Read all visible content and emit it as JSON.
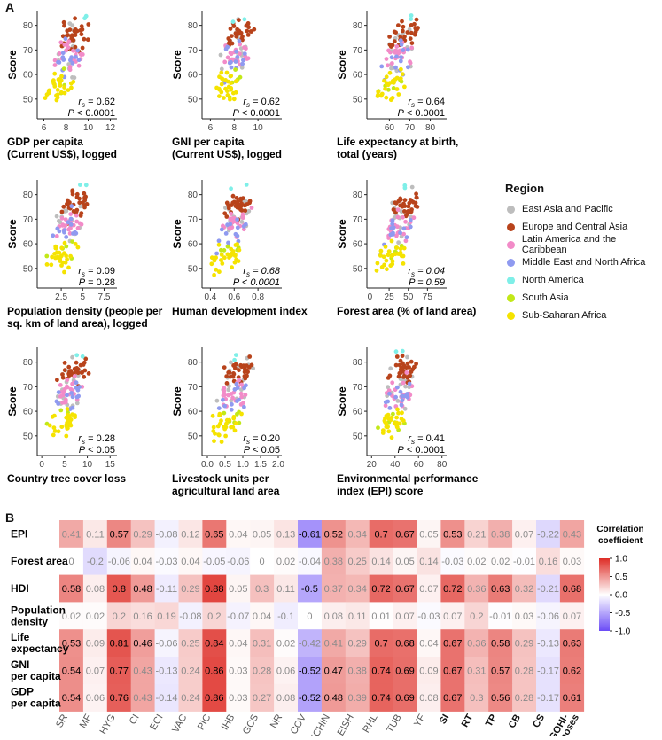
{
  "panel_labels": {
    "a": "A",
    "b": "B"
  },
  "legend": {
    "title": "Region",
    "items": [
      {
        "label": "East Asia and Pacific",
        "color": "#BDBDBD"
      },
      {
        "label": "Europe and Central Asia",
        "color": "#B8431B"
      },
      {
        "label": "Latin America and the Caribbean",
        "color": "#F28BC8"
      },
      {
        "label": "Middle East and North Africa",
        "color": "#8F9AF0"
      },
      {
        "label": "North America",
        "color": "#7FEFE8"
      },
      {
        "label": "South Asia",
        "color": "#C2E818"
      },
      {
        "label": "Sub-Saharan Africa",
        "color": "#F5E300"
      }
    ]
  },
  "chart_data": [
    {
      "type": "scatter",
      "xlabel": "GDP per capita\n(Current US$), logged",
      "ylabel": "Score",
      "xlim": [
        5.4,
        12.6
      ],
      "xticks": [
        6,
        8,
        10,
        12
      ],
      "ylim": [
        42,
        86
      ],
      "yticks": [
        50,
        60,
        70,
        80
      ],
      "rs_label": "rs = 0.62",
      "p_label": "P < 0.0001",
      "italic": false
    },
    {
      "type": "scatter",
      "xlabel": "GNI per capita\n(Current US$), logged",
      "ylabel": "Score",
      "xlim": [
        5.3,
        12.0
      ],
      "xticks": [
        6,
        8,
        10
      ],
      "ylim": [
        42,
        86
      ],
      "yticks": [
        50,
        60,
        70,
        80
      ],
      "rs_label": "rs = 0.62",
      "p_label": "P < 0.0001",
      "italic": false
    },
    {
      "type": "scatter",
      "xlabel": "Life expectancy at birth,\ntotal (years)",
      "ylabel": "Score",
      "xlim": [
        49,
        88
      ],
      "xticks": [
        60,
        70,
        80
      ],
      "ylim": [
        42,
        86
      ],
      "yticks": [
        50,
        60,
        70,
        80
      ],
      "rs_label": "rs = 0.64",
      "p_label": "P < 0.0001",
      "italic": false
    },
    {
      "type": "scatter",
      "xlabel": "Population density (people per\nsq. km of land area), logged",
      "ylabel": "Score",
      "xlim": [
        -0.3,
        9.0
      ],
      "xticks": [
        2.5,
        5.0,
        7.5
      ],
      "ylim": [
        42,
        86
      ],
      "yticks": [
        50,
        60,
        70,
        80
      ],
      "rs_label": "rs = 0.09",
      "p_label": "P = 0.28",
      "italic": false
    },
    {
      "type": "scatter",
      "xlabel": "Human development index",
      "ylabel": "Score",
      "xlim": [
        0.33,
        1.0
      ],
      "xticks": [
        0.4,
        0.6,
        0.8
      ],
      "ylim": [
        42,
        86
      ],
      "yticks": [
        50,
        60,
        70,
        80
      ],
      "rs_label": "rs = 0.68",
      "p_label": "P < 0.0001",
      "italic": true
    },
    {
      "type": "scatter",
      "xlabel": "Forest area (% of land area)",
      "ylabel": "Score",
      "xlim": [
        -4,
        100
      ],
      "xticks": [
        0,
        25,
        50,
        75
      ],
      "ylim": [
        42,
        86
      ],
      "yticks": [
        50,
        60,
        70,
        80
      ],
      "rs_label": "rs = 0.04",
      "p_label": "P = 0.59",
      "italic": true
    },
    {
      "type": "scatter",
      "xlabel": "Country tree cover loss",
      "ylabel": "Score",
      "xlim": [
        -1,
        16.5
      ],
      "xticks": [
        0,
        5,
        10,
        15
      ],
      "ylim": [
        42,
        86
      ],
      "yticks": [
        50,
        60,
        70,
        80
      ],
      "rs_label": "rs = 0.28",
      "p_label": "P < 0.05",
      "italic": false
    },
    {
      "type": "scatter",
      "xlabel": "Livestock units per\nagricultural land area",
      "ylabel": "Score",
      "xlim": [
        -0.15,
        2.1
      ],
      "xticks": [
        0.0,
        0.5,
        1.0,
        1.5,
        2.0
      ],
      "xtick_labels": [
        "0.0",
        "0.5",
        "1.0",
        "1.5",
        "2.0"
      ],
      "ylim": [
        42,
        86
      ],
      "yticks": [
        50,
        60,
        70,
        80
      ],
      "rs_label": "rs = 0.20",
      "p_label": "P < 0.05",
      "italic": false
    },
    {
      "type": "scatter",
      "xlabel": "Environmental performance\nindex (EPI) score",
      "ylabel": "Score",
      "xlim": [
        16,
        84
      ],
      "xticks": [
        20,
        40,
        60,
        80
      ],
      "ylim": [
        42,
        86
      ],
      "yticks": [
        50,
        60,
        70,
        80
      ],
      "rs_label": "rs = 0.41",
      "p_label": "P < 0.0001",
      "italic": false
    },
    {
      "type": "heatmap",
      "rows": [
        "EPI",
        "Forest area",
        "HDI",
        "Population density",
        "Life expectancy",
        "GNI per capita",
        "GDP per capita"
      ],
      "columns": [
        "SR",
        "MF",
        "HYG",
        "CI",
        "ECI",
        "VAC",
        "PIC",
        "IHB",
        "GCS",
        "NR",
        "COV",
        "ECHIN",
        "LEISH",
        "RHL",
        "TUB",
        "YF",
        "SI",
        "RT",
        "TP",
        "CB",
        "CS",
        "GOHI-Zoonoses"
      ],
      "bold_columns": [
        "SI",
        "RT",
        "TP",
        "CB",
        "CS",
        "GOHI-Zoonoses"
      ],
      "values": [
        [
          0.41,
          0.11,
          0.57,
          0.29,
          -0.08,
          0.12,
          0.65,
          0.04,
          0.05,
          0.13,
          -0.61,
          0.52,
          0.34,
          0.7,
          0.67,
          0.05,
          0.53,
          0.21,
          0.38,
          0.07,
          -0.22,
          0.43
        ],
        [
          0,
          -0.2,
          -0.06,
          0.04,
          -0.03,
          0.04,
          -0.05,
          -0.06,
          0,
          0.02,
          -0.04,
          0.38,
          0.25,
          0.14,
          0.05,
          0.14,
          -0.03,
          0.02,
          0.02,
          -0.01,
          0.16,
          0.03
        ],
        [
          0.58,
          0.08,
          0.8,
          0.48,
          -0.11,
          0.29,
          0.88,
          0.05,
          0.3,
          0.11,
          -0.5,
          0.37,
          0.34,
          0.72,
          0.67,
          0.07,
          0.72,
          0.36,
          0.63,
          0.32,
          -0.21,
          0.68
        ],
        [
          0.02,
          0.02,
          0.2,
          0.16,
          0.19,
          -0.08,
          0.2,
          -0.07,
          0.04,
          -0.1,
          0,
          0.08,
          0.11,
          0.01,
          0.07,
          -0.03,
          0.07,
          0.2,
          -0.01,
          0.03,
          -0.06,
          0.07
        ],
        [
          0.53,
          0.09,
          0.81,
          0.46,
          -0.06,
          0.25,
          0.84,
          0.04,
          0.31,
          0.02,
          -0.42,
          0.41,
          0.29,
          0.7,
          0.68,
          0.04,
          0.67,
          0.36,
          0.58,
          0.29,
          -0.13,
          0.63
        ],
        [
          0.54,
          0.07,
          0.77,
          0.43,
          -0.13,
          0.24,
          0.86,
          0.03,
          0.28,
          0.06,
          -0.52,
          0.47,
          0.38,
          0.74,
          0.69,
          0.09,
          0.67,
          0.31,
          0.57,
          0.28,
          -0.17,
          0.62
        ],
        [
          0.54,
          0.06,
          0.76,
          0.43,
          -0.14,
          0.24,
          0.86,
          0.03,
          0.27,
          0.08,
          -0.52,
          0.48,
          0.39,
          0.74,
          0.69,
          0.08,
          0.67,
          0.3,
          0.56,
          0.28,
          -0.17,
          0.61
        ]
      ],
      "colorbar_title": "Correlation\ncoefficient",
      "colorbar_ticks": [
        "1.0",
        "0.5",
        "0.0",
        "-0.5",
        "-1.0"
      ],
      "colorbar_range": [
        -1,
        1
      ]
    }
  ]
}
